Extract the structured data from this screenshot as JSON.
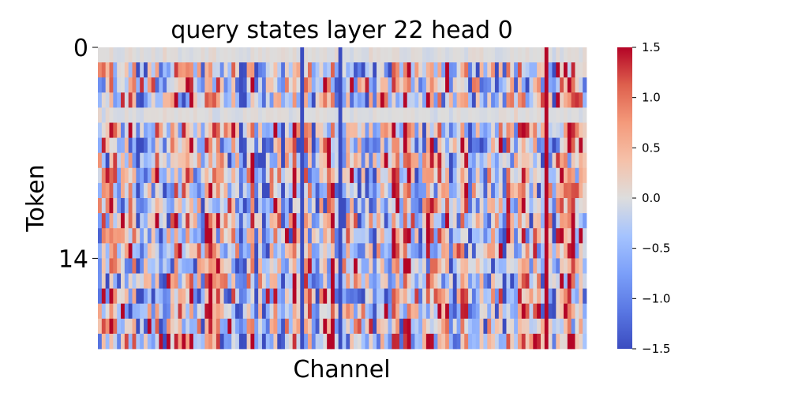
{
  "chart_data": {
    "type": "heatmap",
    "title": "query states layer 22 head 0",
    "xlabel": "Channel",
    "ylabel": "Token",
    "y_tick_labels": [
      {
        "token": 0,
        "label": "0"
      },
      {
        "token": 14,
        "label": "14"
      }
    ],
    "n_tokens": 20,
    "n_channels": 128,
    "value_range": [
      -1.5,
      1.5
    ],
    "colormap": "coolwarm",
    "colorbar_ticks": [
      {
        "value": 1.5,
        "label": "1.5"
      },
      {
        "value": 1.0,
        "label": "1.0"
      },
      {
        "value": 0.5,
        "label": "0.5"
      },
      {
        "value": 0.0,
        "label": "0.0"
      },
      {
        "value": -0.5,
        "label": "−0.5"
      },
      {
        "value": -1.0,
        "label": "−1.0"
      },
      {
        "value": -1.5,
        "label": "−1.5"
      }
    ],
    "zero_rows": [
      0,
      4
    ],
    "strong_columns": [
      {
        "channel": 53,
        "value": -1.5
      },
      {
        "channel": 63,
        "value": -1.5
      },
      {
        "channel": 117,
        "value": 1.5
      }
    ],
    "colors": {
      "low": "#3b4cc0",
      "mid": "#dddddd",
      "high": "#b40426"
    }
  }
}
